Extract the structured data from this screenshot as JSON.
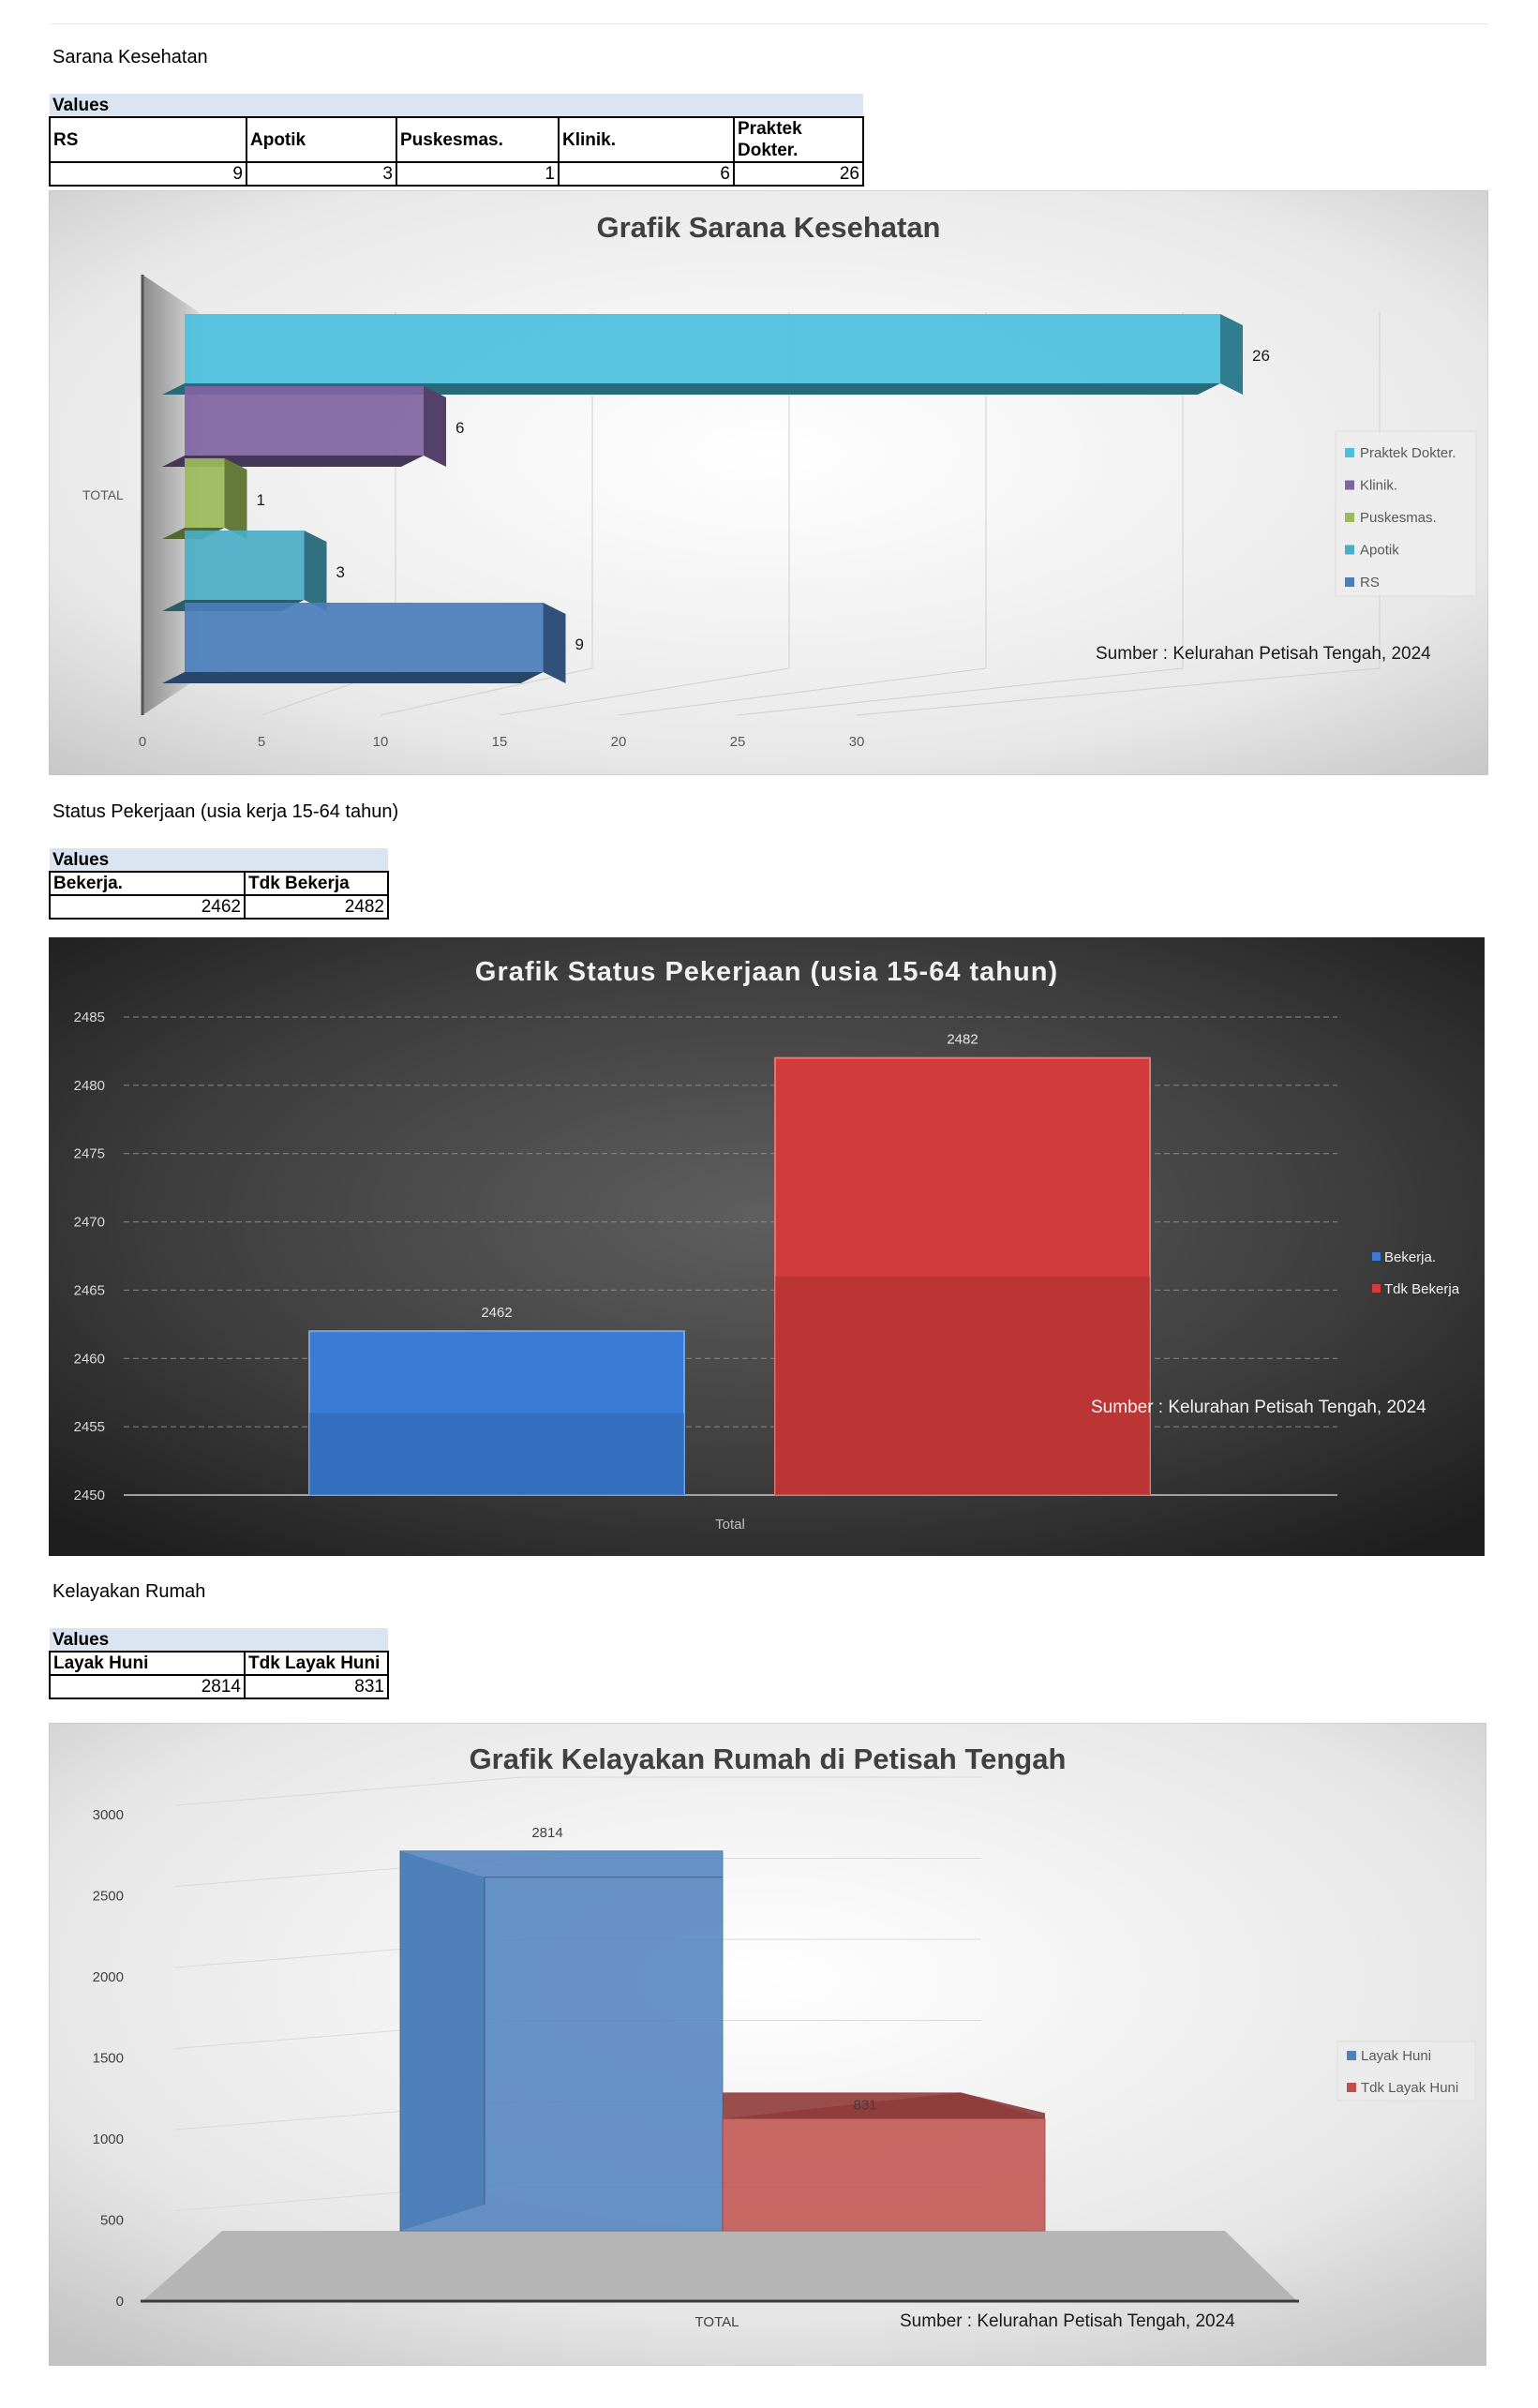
{
  "sections": [
    {
      "title": "Sarana Kesehatan",
      "table": {
        "values_label": "Values",
        "headers": [
          "RS",
          "Apotik",
          "Puskesmas.",
          "Klinik.",
          "Praktek Dokter."
        ],
        "values": [
          "9",
          "3",
          "1",
          "6",
          "26"
        ]
      }
    },
    {
      "title": "Status Pekerjaan (usia kerja 15-64 tahun)",
      "table": {
        "values_label": "Values",
        "headers": [
          "Bekerja.",
          "Tdk Bekerja"
        ],
        "values": [
          "2462",
          "2482"
        ]
      }
    },
    {
      "title": "Kelayakan Rumah",
      "table": {
        "values_label": "Values",
        "headers": [
          "Layak Huni",
          "Tdk Layak Huni"
        ],
        "values": [
          "2814",
          "831"
        ]
      }
    }
  ],
  "chart_data": [
    {
      "type": "bar",
      "orientation": "horizontal",
      "title": "Grafik Sarana Kesehatan",
      "categories": [
        "TOTAL"
      ],
      "series": [
        {
          "name": "RS",
          "values": [
            9
          ],
          "color": "#4a7ebb"
        },
        {
          "name": "Apotik",
          "values": [
            3
          ],
          "color": "#4bacc6"
        },
        {
          "name": "Puskesmas.",
          "values": [
            1
          ],
          "color": "#9bbb59"
        },
        {
          "name": "Klinik.",
          "values": [
            6
          ],
          "color": "#8064a2"
        },
        {
          "name": "Praktek Dokter.",
          "values": [
            26
          ],
          "color": "#4bc0de"
        }
      ],
      "x_ticks": [
        "0",
        "5",
        "10",
        "15",
        "20",
        "25",
        "30"
      ],
      "xlim": [
        0,
        30
      ],
      "legend": "right",
      "legend_order": [
        "Praktek Dokter.",
        "Klinik.",
        "Puskesmas.",
        "Apotik",
        "RS"
      ],
      "annotation": "Sumber : Kelurahan Petisah Tengah, 2024"
    },
    {
      "type": "bar",
      "title": "Grafik Status Pekerjaan (usia 15-64 tahun)",
      "categories": [
        "Total"
      ],
      "series": [
        {
          "name": "Bekerja.",
          "values": [
            2462
          ],
          "color": "#3a7bd5"
        },
        {
          "name": "Tdk Bekerja",
          "values": [
            2482
          ],
          "color": "#d13b3b"
        }
      ],
      "y_ticks": [
        "2450",
        "2455",
        "2460",
        "2465",
        "2470",
        "2475",
        "2480",
        "2485"
      ],
      "ylim": [
        2450,
        2485
      ],
      "grid": true,
      "legend": "right",
      "annotation": "Sumber : Kelurahan Petisah Tengah, 2024"
    },
    {
      "type": "bar",
      "title": "Grafik Kelayakan Rumah di Petisah Tengah",
      "categories": [
        "TOTAL"
      ],
      "series": [
        {
          "name": "Layak Huni",
          "values": [
            2814
          ],
          "color": "#4f81bd"
        },
        {
          "name": "Tdk Layak Huni",
          "values": [
            831
          ],
          "color": "#c0504d"
        }
      ],
      "y_ticks": [
        "0",
        "500",
        "1000",
        "1500",
        "2000",
        "2500",
        "3000"
      ],
      "ylim": [
        0,
        3000
      ],
      "legend": "right",
      "annotation": "Sumber : Kelurahan Petisah Tengah, 2024"
    }
  ]
}
